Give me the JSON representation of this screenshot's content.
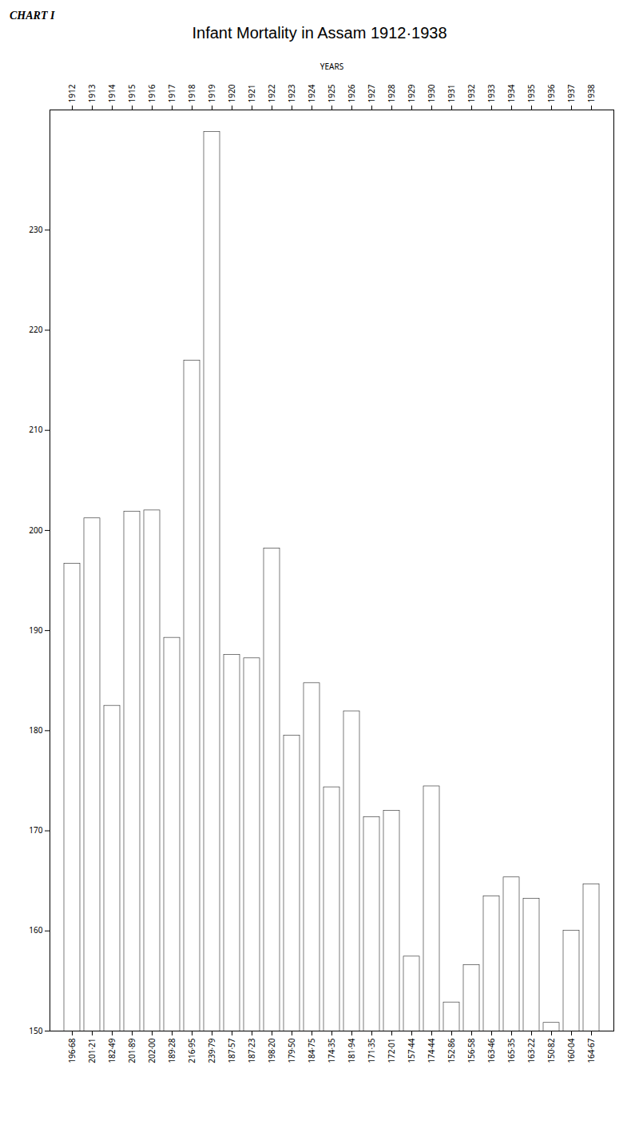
{
  "chart_data": {
    "type": "bar",
    "title": "Infant Mortality in Assam 1912·1938",
    "subtitle": "CHART I",
    "xlabel": "YEARS",
    "categories": [
      1912,
      1913,
      1914,
      1915,
      1916,
      1917,
      1918,
      1919,
      1920,
      1921,
      1922,
      1923,
      1924,
      1925,
      1926,
      1927,
      1928,
      1929,
      1930,
      1931,
      1932,
      1933,
      1934,
      1935,
      1936,
      1937,
      1938
    ],
    "values": [
      196.68,
      201.21,
      182.49,
      201.89,
      202.0,
      189.28,
      216.95,
      239.79,
      187.57,
      187.23,
      198.2,
      179.5,
      184.75,
      174.35,
      181.94,
      171.35,
      172.01,
      157.44,
      174.44,
      152.86,
      156.58,
      163.46,
      165.35,
      163.22,
      150.82,
      160.04,
      164.67
    ],
    "value_labels": [
      "196·68",
      "201·21",
      "182·49",
      "201·89",
      "202·00",
      "189·28",
      "216·95",
      "239·79",
      "187·57",
      "187·23",
      "198·20",
      "179·50",
      "184·75",
      "174·35",
      "181·94",
      "171·35",
      "172·01",
      "157·44",
      "174·44",
      "152·86",
      "156·58",
      "163·46",
      "165·35",
      "163·22",
      "150·82",
      "160·04",
      "164·67"
    ],
    "data_labels": true,
    "ylim": [
      150,
      242
    ],
    "yticks": [
      150,
      160,
      170,
      180,
      190,
      200,
      210,
      220,
      230
    ],
    "grid": true
  }
}
